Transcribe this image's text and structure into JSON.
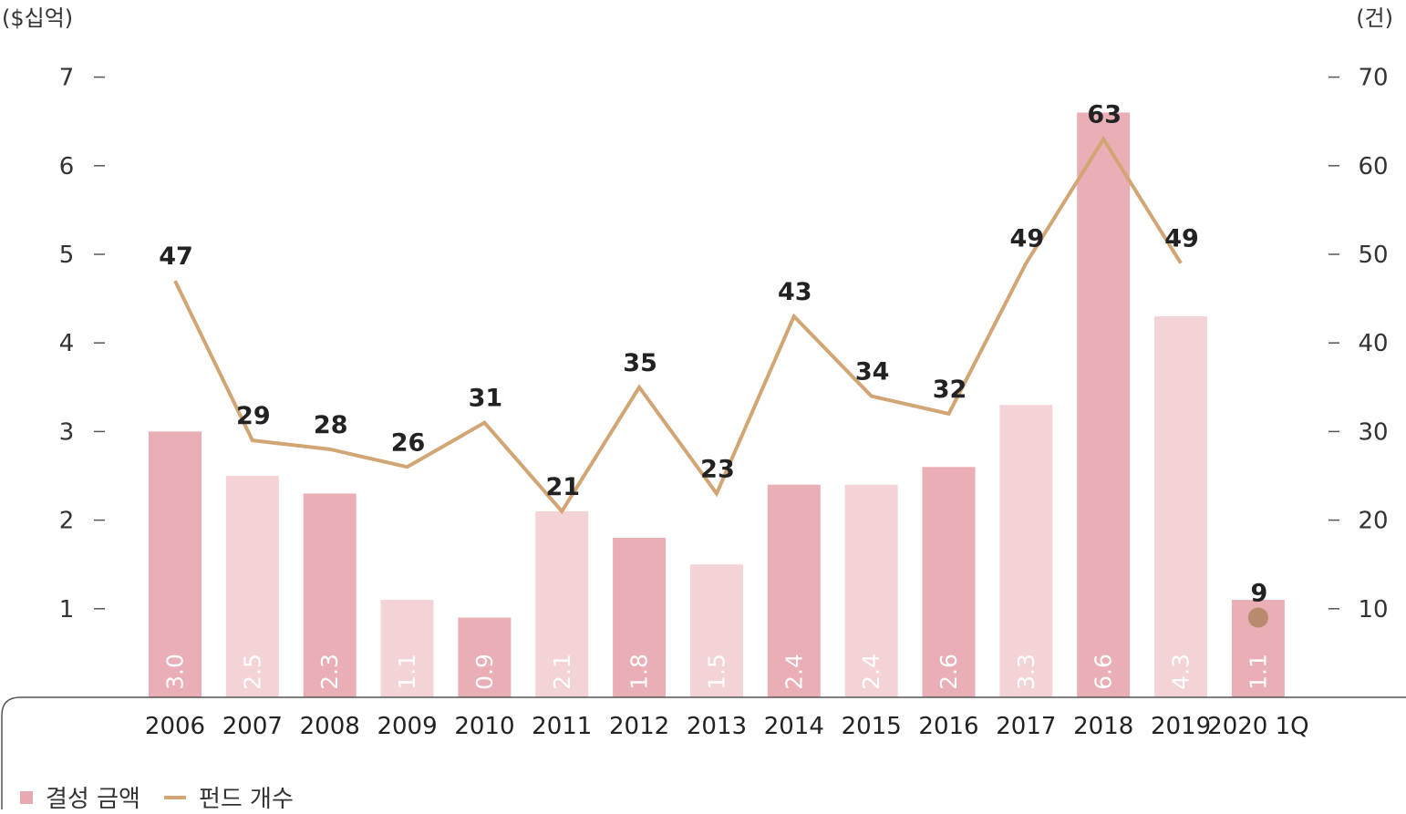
{
  "units": {
    "left": "($십억)",
    "right": "(건)"
  },
  "legend": {
    "amount": "결성 금액",
    "funds": "펀드 개수"
  },
  "colors": {
    "bar_dark": "#eaaeb6",
    "bar_light": "#f4d3d7",
    "line": "#d1a574",
    "marker": "#b78b6c",
    "bar_text": "#ffffff"
  },
  "chart_data": {
    "type": "bar",
    "categories": [
      "2006",
      "2007",
      "2008",
      "2009",
      "2010",
      "2011",
      "2012",
      "2013",
      "2014",
      "2015",
      "2016",
      "2017",
      "2018",
      "2019",
      "2020 1Q"
    ],
    "series": [
      {
        "name": "결성 금액",
        "type": "bar",
        "axis": "left",
        "values": [
          3.0,
          2.5,
          2.3,
          1.1,
          0.9,
          2.1,
          1.8,
          1.5,
          2.4,
          2.4,
          2.6,
          3.3,
          6.6,
          4.3,
          1.1
        ],
        "labels": [
          "3.0",
          "2.5",
          "2.3",
          "1.1",
          "0.9",
          "2.1",
          "1.8",
          "1.5",
          "2.4",
          "2.4",
          "2.6",
          "3.3",
          "6.6",
          "4.3",
          "1.1"
        ]
      },
      {
        "name": "펀드 개수",
        "type": "line",
        "axis": "right",
        "values": [
          47,
          29,
          28,
          26,
          31,
          21,
          35,
          23,
          43,
          34,
          32,
          49,
          63,
          49,
          9
        ],
        "labels": [
          "47",
          "29",
          "28",
          "26",
          "31",
          "21",
          "35",
          "23",
          "43",
          "34",
          "32",
          "49",
          "63",
          "49",
          "9"
        ]
      }
    ],
    "y_left": {
      "range": [
        0,
        7
      ],
      "ticks": [
        "1",
        "2",
        "3",
        "4",
        "5",
        "6",
        "7"
      ]
    },
    "y_right": {
      "range": [
        0,
        70
      ],
      "ticks": [
        "10",
        "20",
        "30",
        "40",
        "50",
        "60",
        "70"
      ]
    },
    "legend_position": "bottom-left"
  }
}
